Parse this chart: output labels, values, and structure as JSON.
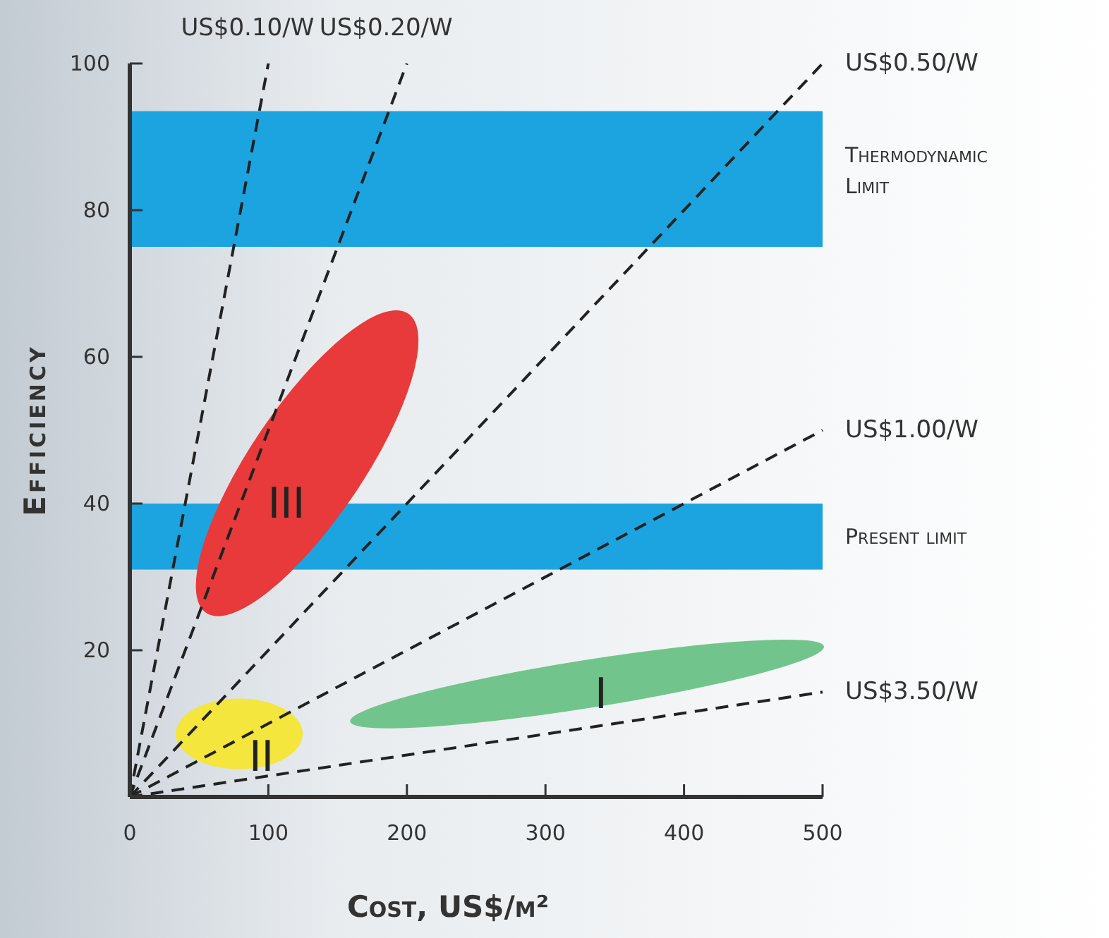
{
  "chart_data": {
    "type": "line",
    "xlabel": "Cost, US$/m²",
    "ylabel": "Efficiency",
    "xlim": [
      0,
      500
    ],
    "ylim": [
      0,
      100
    ],
    "xticks": [
      0,
      100,
      200,
      300,
      400,
      500
    ],
    "yticks": [
      {
        "value": 0,
        "label": null
      },
      20,
      40,
      60,
      80,
      100
    ],
    "series": [
      {
        "name": "US$0.10/W",
        "color": "#222222",
        "x": [
          0,
          100
        ],
        "values": [
          0,
          100
        ]
      },
      {
        "name": "US$0.20/W",
        "color": "#222222",
        "x": [
          0,
          200
        ],
        "values": [
          0,
          100
        ]
      },
      {
        "name": "US$0.50/W",
        "color": "#222222",
        "x": [
          0,
          500
        ],
        "values": [
          0,
          100
        ]
      },
      {
        "name": "US$1.00/W",
        "color": "#222222",
        "x": [
          0,
          500
        ],
        "values": [
          0,
          50
        ]
      },
      {
        "name": "US$3.50/W",
        "color": "#222222",
        "x": [
          0,
          500
        ],
        "values": [
          0,
          14.3
        ]
      }
    ],
    "line_style": "dashed",
    "marker": "none",
    "bands": [
      {
        "axis": "y",
        "from": 75,
        "to": 93.5,
        "label": "Thermodynamic Limit",
        "color": "#1ca4e0"
      },
      {
        "axis": "y",
        "from": 31,
        "to": 40,
        "label": "Present limit",
        "color": "#1ca4e0"
      }
    ],
    "annotations": [
      "I",
      "II",
      "III"
    ]
  }
}
